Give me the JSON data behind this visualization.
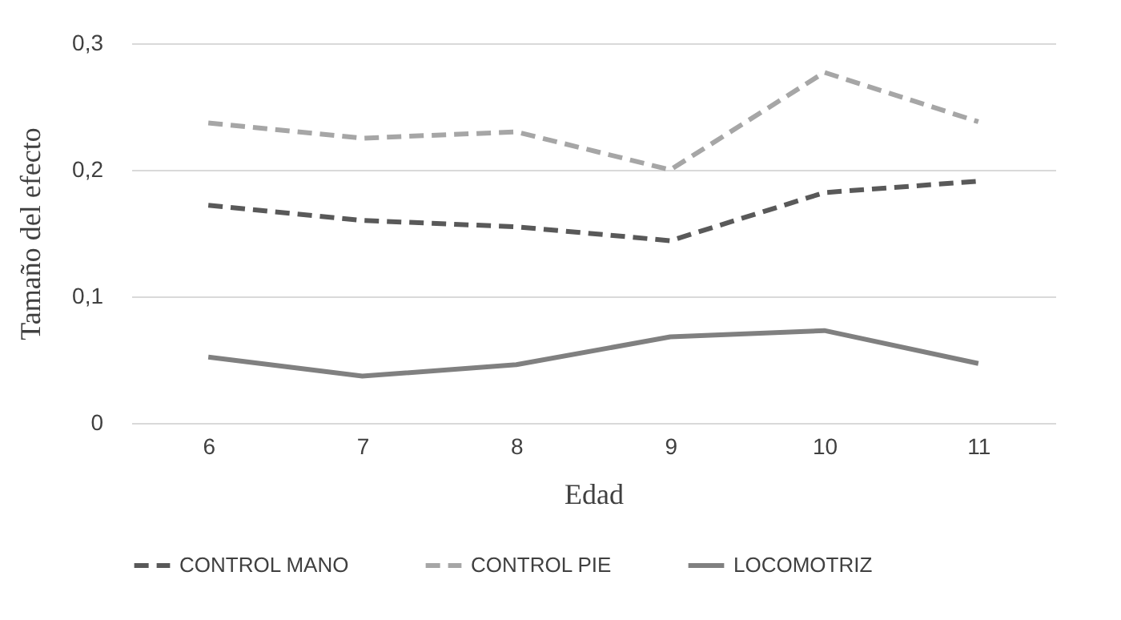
{
  "chart_data": {
    "type": "line",
    "xlabel": "Edad",
    "ylabel": "Tamaño del efecto",
    "categories": [
      "6",
      "7",
      "8",
      "9",
      "10",
      "11"
    ],
    "series": [
      {
        "name": "CONTROL MANO",
        "color": "#595959",
        "line_style": "dashed",
        "values": [
          0.172,
          0.16,
          0.155,
          0.144,
          0.182,
          0.191
        ]
      },
      {
        "name": "CONTROL PIE",
        "color": "#a6a6a6",
        "line_style": "dashed",
        "values": [
          0.237,
          0.225,
          0.23,
          0.2,
          0.277,
          0.238
        ]
      },
      {
        "name": "LOCOMOTRIZ",
        "color": "#808080",
        "line_style": "solid",
        "values": [
          0.052,
          0.037,
          0.046,
          0.068,
          0.073,
          0.047
        ]
      }
    ],
    "ylim": [
      0,
      0.3
    ],
    "yticks": [
      {
        "value": 0,
        "label": "0"
      },
      {
        "value": 0.1,
        "label": "0,1"
      },
      {
        "value": 0.2,
        "label": "0,2"
      },
      {
        "value": 0.3,
        "label": "0,3"
      }
    ],
    "grid": "y",
    "legend": "bottom",
    "marker": "none"
  }
}
